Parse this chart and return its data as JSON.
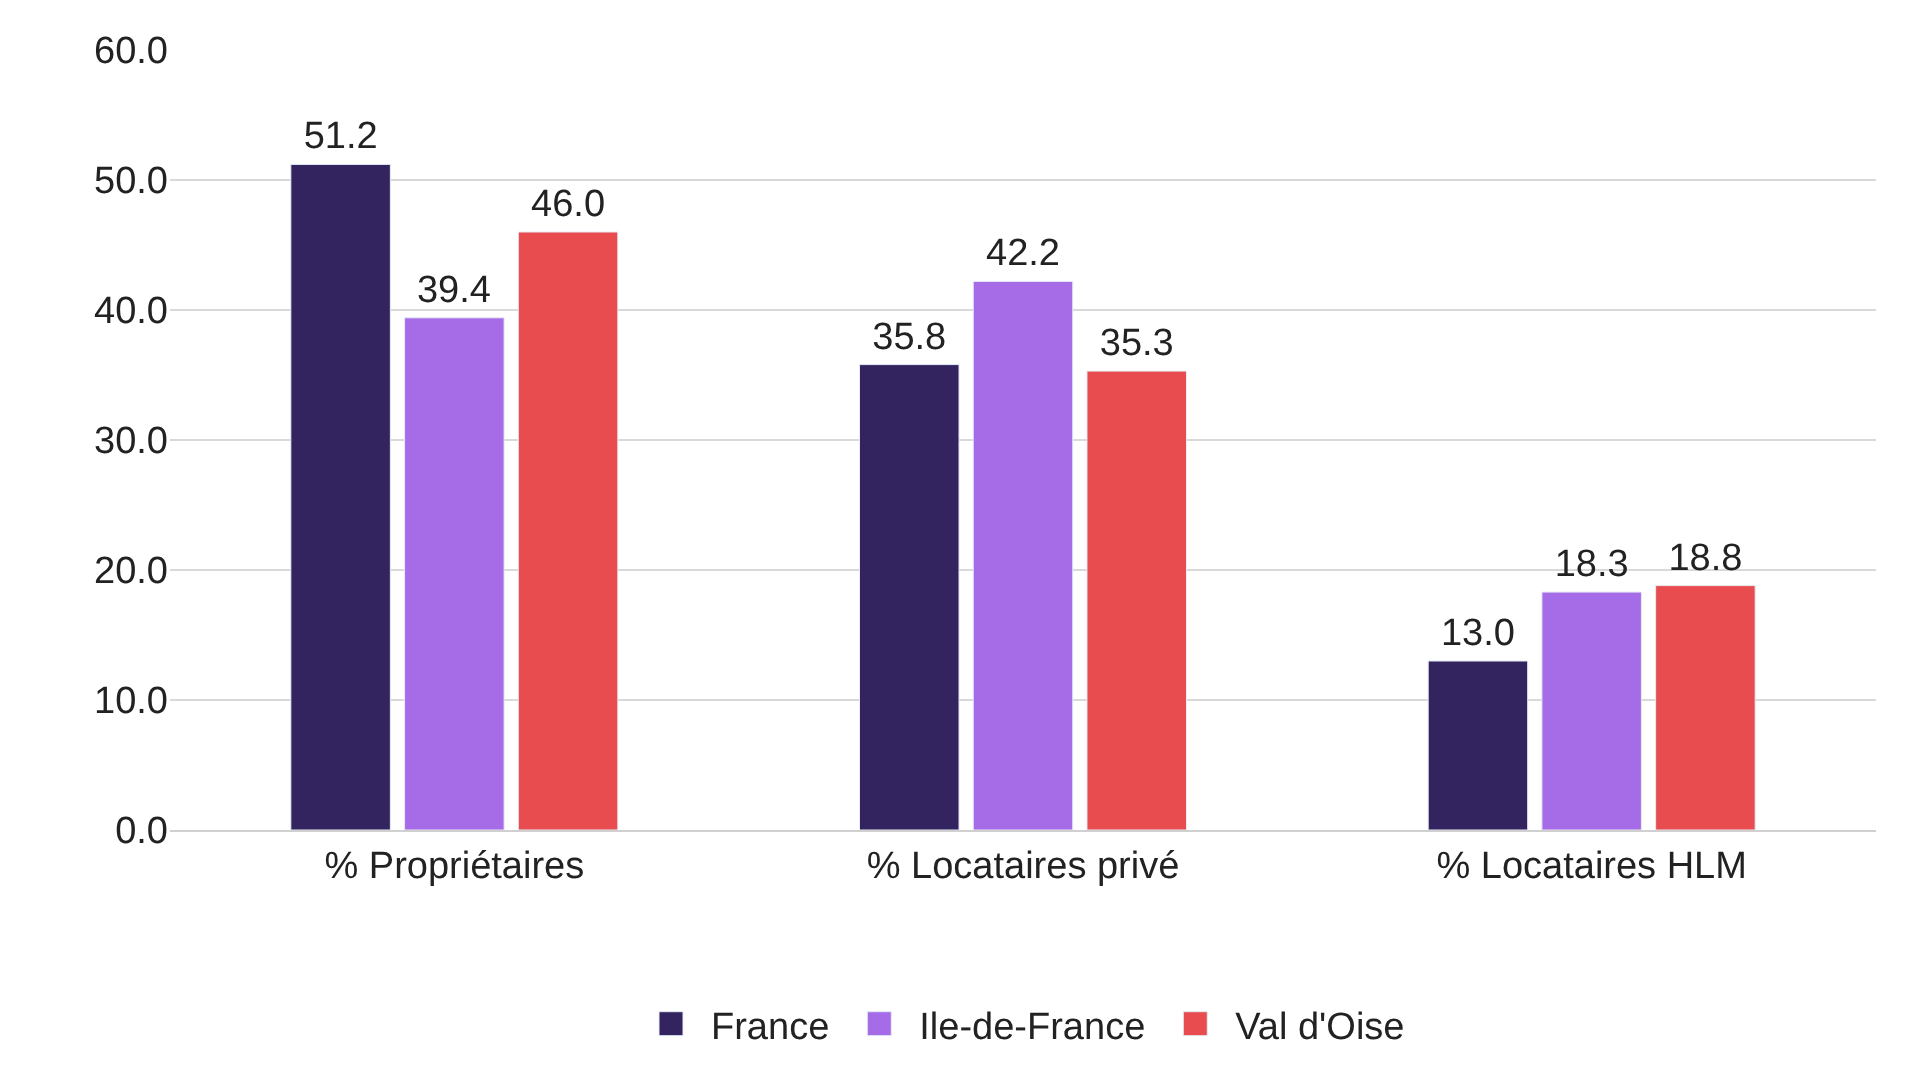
{
  "chart_data": {
    "type": "bar",
    "categories": [
      "% Propriétaires",
      "% Locataires privé",
      "% Locataires HLM"
    ],
    "series": [
      {
        "name": "France",
        "color": "#33235f",
        "values": [
          51.2,
          35.8,
          13.0
        ],
        "value_labels": [
          "51.2",
          "35.8",
          "13.0"
        ]
      },
      {
        "name": "Ile-de-France",
        "color": "#a66be6",
        "values": [
          39.4,
          42.2,
          18.3
        ],
        "value_labels": [
          "39.4",
          "42.2",
          "18.3"
        ]
      },
      {
        "name": "Val d'Oise",
        "color": "#e84c4f",
        "values": [
          46.0,
          35.3,
          18.8
        ],
        "value_labels": [
          "46.0",
          "35.3",
          "18.8"
        ]
      }
    ],
    "ylim": [
      0,
      60
    ],
    "yticks": [
      {
        "value": 0,
        "label": "0.0"
      },
      {
        "value": 10,
        "label": "10.0"
      },
      {
        "value": 20,
        "label": "20.0"
      },
      {
        "value": 30,
        "label": "30.0"
      },
      {
        "value": 40,
        "label": "40.0"
      },
      {
        "value": 50,
        "label": "50.0"
      },
      {
        "value": 60,
        "label": "60.0"
      }
    ],
    "grid": "y",
    "legend": "bottom"
  }
}
